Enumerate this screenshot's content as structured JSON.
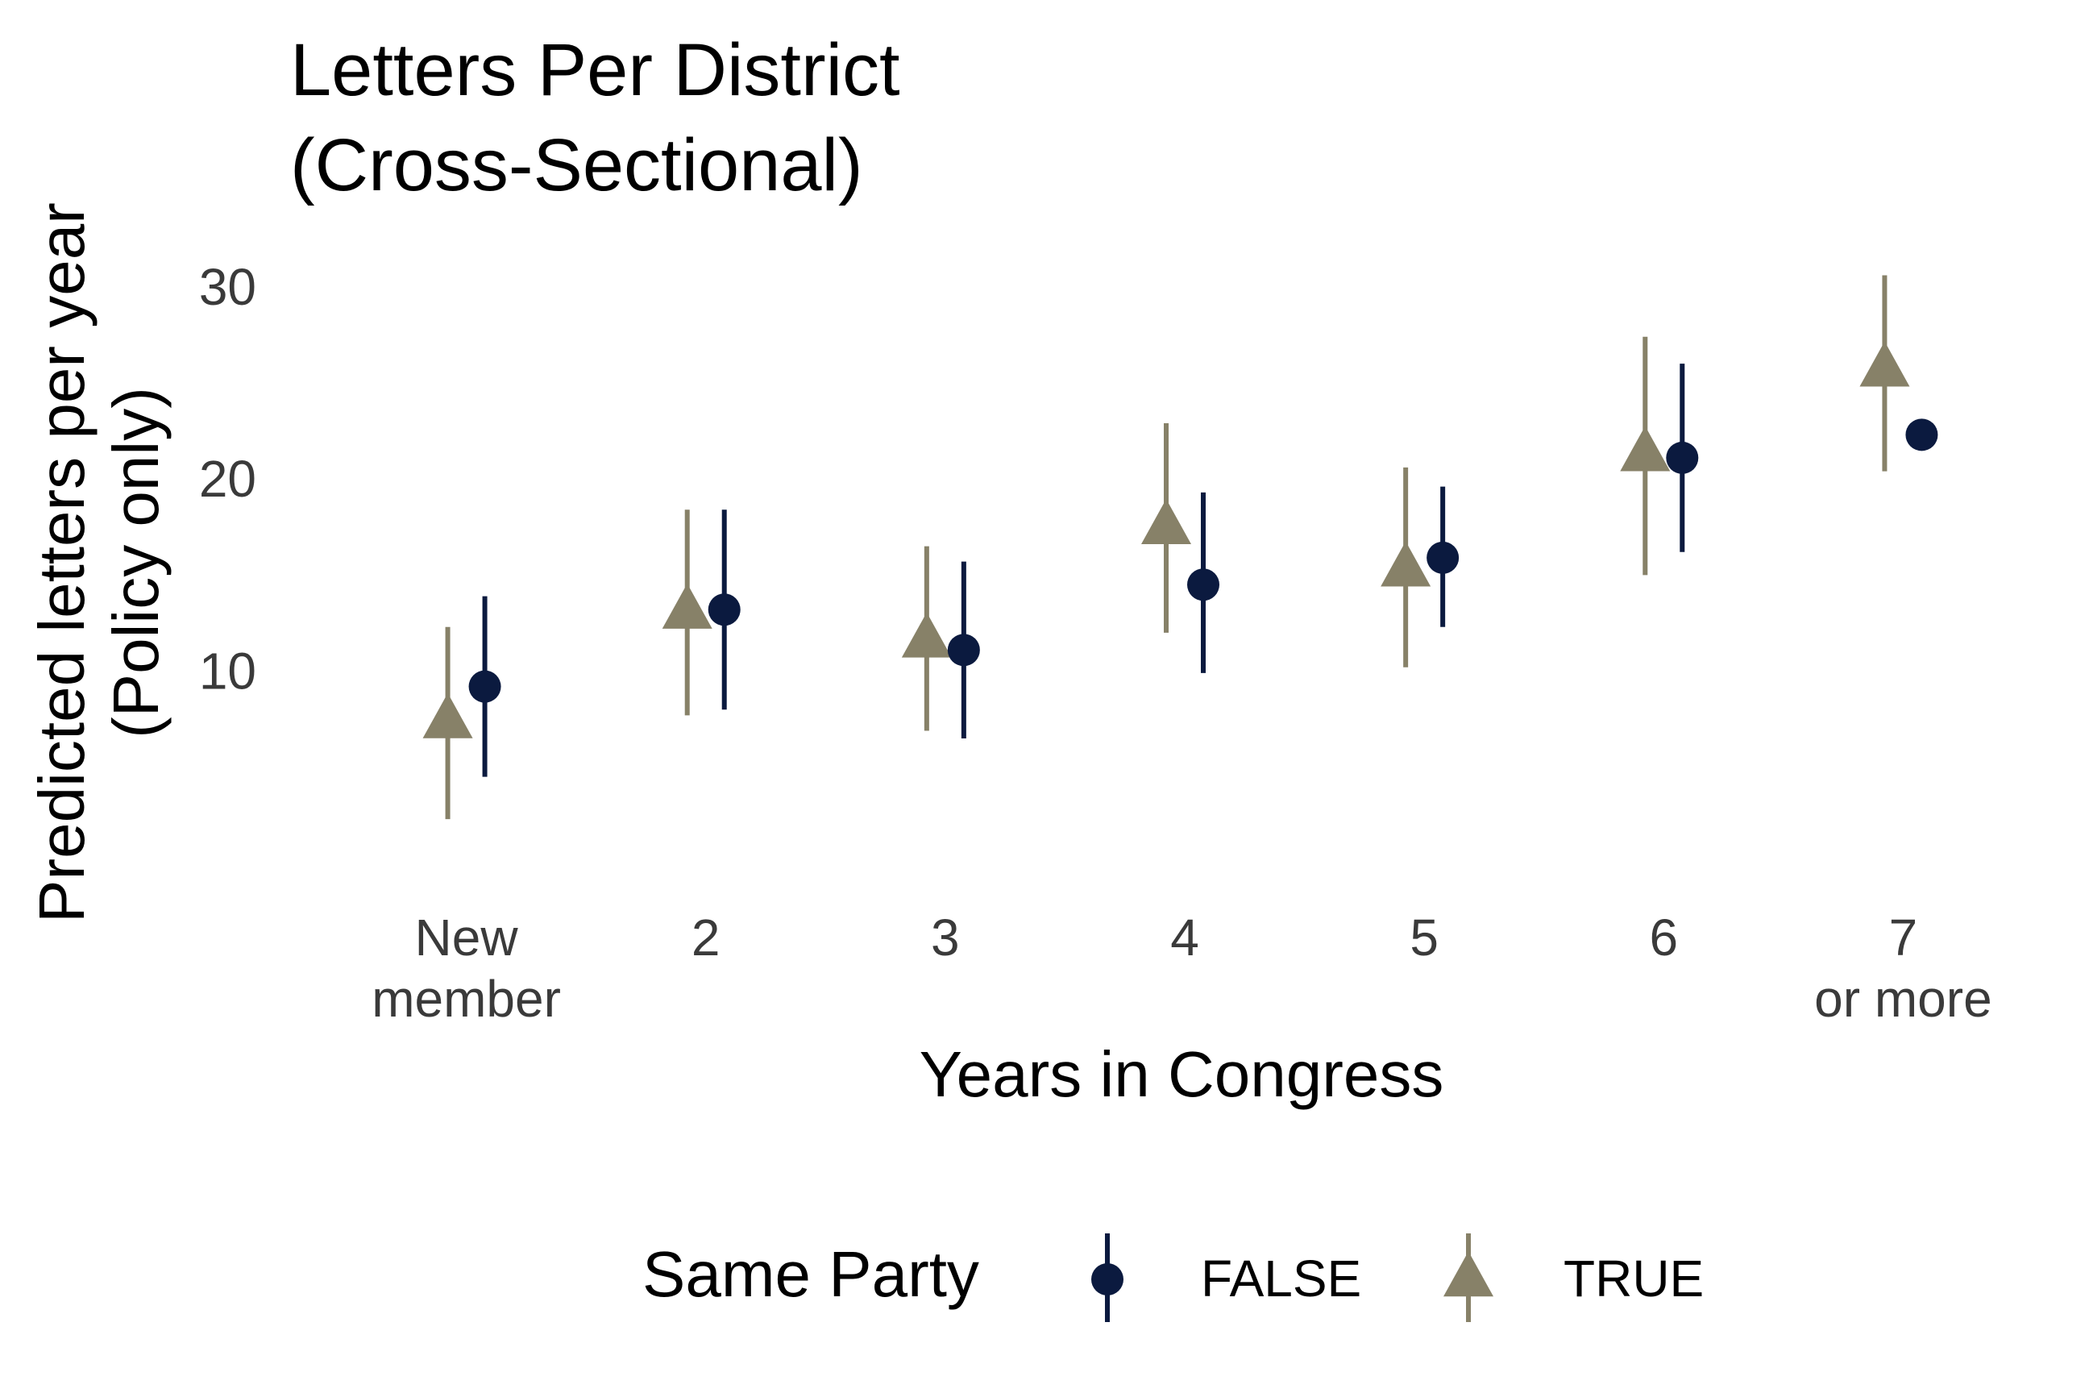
{
  "chart_data": {
    "type": "scatter",
    "title_lines": [
      "Letters Per District",
      "(Cross-Sectional)"
    ],
    "xlabel": "Years in Congress",
    "ylabel_lines": [
      "Predicted letters per year",
      "(Policy only)"
    ],
    "categories": [
      {
        "lines": [
          "New",
          "member"
        ]
      },
      {
        "lines": [
          "2"
        ]
      },
      {
        "lines": [
          "3"
        ]
      },
      {
        "lines": [
          "4"
        ]
      },
      {
        "lines": [
          "5"
        ]
      },
      {
        "lines": [
          "6"
        ]
      },
      {
        "lines": [
          "7",
          "or more"
        ]
      }
    ],
    "y_ticks": [
      10,
      20,
      30
    ],
    "ylim": [
      -0.8,
      31.5
    ],
    "grid": false,
    "legend_title": "Same Party",
    "legend_position": "bottom",
    "series": [
      {
        "name": "FALSE",
        "marker": "circle",
        "color": "#0b1a3f",
        "values": [
          9.2,
          13.2,
          11.1,
          14.5,
          15.9,
          21.1,
          22.3
        ],
        "lower": [
          4.5,
          8.0,
          6.5,
          9.9,
          12.3,
          16.2,
          null
        ],
        "upper": [
          13.9,
          18.4,
          15.7,
          19.3,
          19.6,
          26.0,
          null
        ]
      },
      {
        "name": "TRUE",
        "marker": "triangle",
        "color": "#878168",
        "values": [
          7.4,
          13.1,
          11.6,
          17.5,
          15.3,
          21.3,
          25.7
        ],
        "lower": [
          2.3,
          7.7,
          6.9,
          12.0,
          10.2,
          15.0,
          20.4
        ],
        "upper": [
          12.3,
          18.4,
          16.5,
          22.9,
          20.6,
          27.4,
          30.6
        ]
      }
    ]
  }
}
